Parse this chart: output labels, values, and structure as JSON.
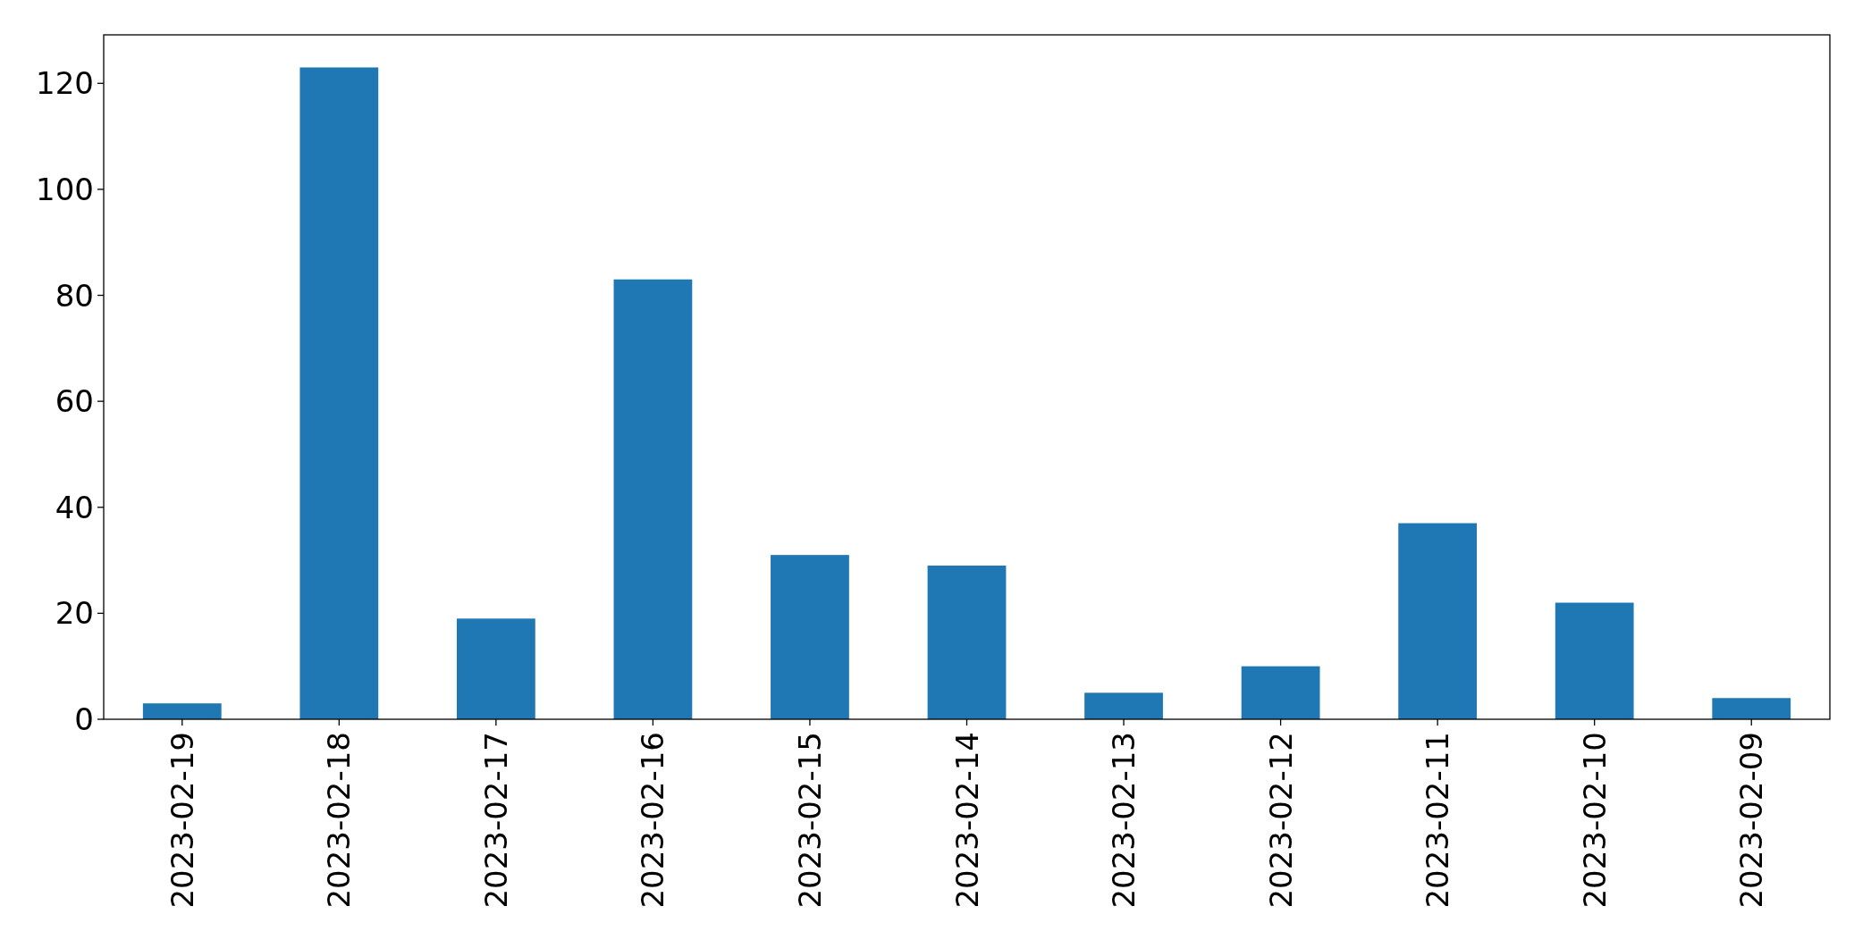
{
  "chart_data": {
    "type": "bar",
    "categories": [
      "2023-02-19",
      "2023-02-18",
      "2023-02-17",
      "2023-02-16",
      "2023-02-15",
      "2023-02-14",
      "2023-02-13",
      "2023-02-12",
      "2023-02-11",
      "2023-02-10",
      "2023-02-09"
    ],
    "values": [
      3,
      123,
      19,
      83,
      31,
      29,
      5,
      10,
      37,
      22,
      4
    ],
    "color": "#1f77b4",
    "ylim": [
      0,
      129.15
    ],
    "yticks": [
      0,
      20,
      40,
      60,
      80,
      100,
      120
    ]
  }
}
